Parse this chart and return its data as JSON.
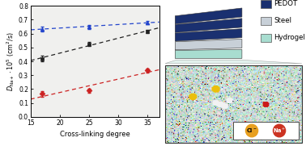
{
  "x": [
    17,
    25,
    35
  ],
  "blue_y": [
    0.635,
    0.648,
    0.68
  ],
  "black_y": [
    0.42,
    0.525,
    0.615
  ],
  "red_y": [
    0.165,
    0.19,
    0.335
  ],
  "blue_yerr": [
    0.018,
    0.015,
    0.012
  ],
  "black_yerr": [
    0.018,
    0.015,
    0.012
  ],
  "red_yerr": [
    0.022,
    0.015,
    0.015
  ],
  "blue_color": "#2244CC",
  "black_color": "#222222",
  "red_color": "#CC2222",
  "xlabel": "Cross-linking degree",
  "ylim": [
    0,
    0.8
  ],
  "xlim": [
    15,
    37
  ],
  "yticks": [
    0.0,
    0.1,
    0.2,
    0.3,
    0.4,
    0.5,
    0.6,
    0.7,
    0.8
  ],
  "xticks": [
    15,
    20,
    25,
    30,
    35
  ],
  "xtick_labels": [
    "15",
    "20",
    "25",
    "30",
    "35"
  ],
  "legend_labels": [
    "PEDOT",
    "Steel",
    "Hydrogel"
  ],
  "pedot_color": "#1a3070",
  "steel_color": "#c8d0d8",
  "hydrogel_color": "#a8ddd0",
  "ion_cl_color": "#E8A020",
  "ion_na_color": "#CC3322"
}
